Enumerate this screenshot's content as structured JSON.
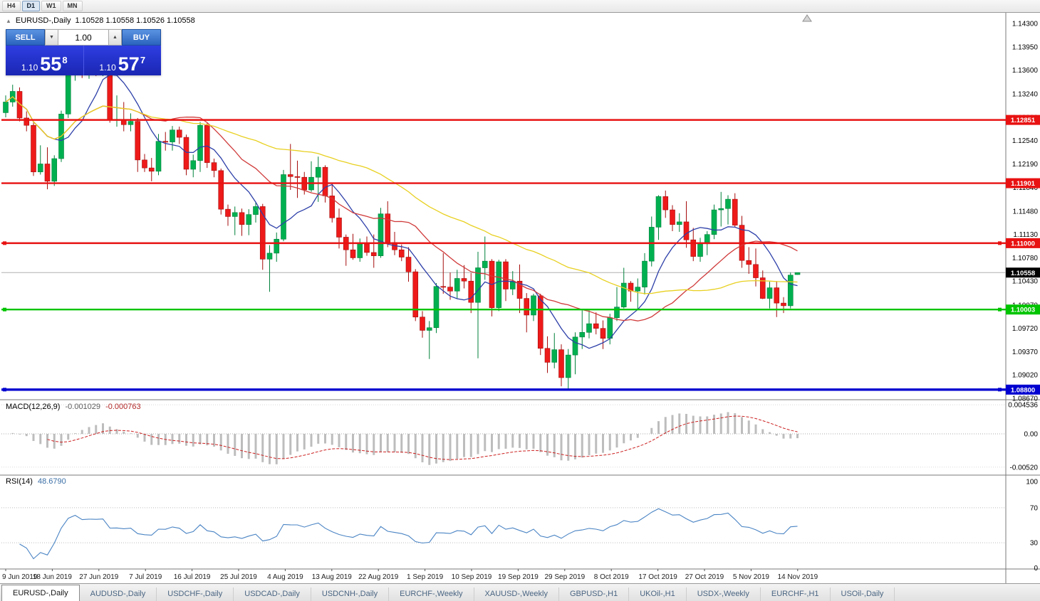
{
  "toolbar": {
    "timeframes": [
      "H4",
      "D1",
      "W1",
      "MN"
    ],
    "active": "D1"
  },
  "chart": {
    "collapse_icon": "▲",
    "title_symbol": "EURUSD-,Daily",
    "ohlc_values": "1.10528 1.10558 1.10526 1.10558"
  },
  "trade_panel": {
    "sell_label": "SELL",
    "buy_label": "BUY",
    "volume": "1.00",
    "spin_down_icon": "▼",
    "spin_up_icon": "▲",
    "sell_price": {
      "prefix": "1.10",
      "big": "55",
      "sup": "8"
    },
    "buy_price": {
      "prefix": "1.10",
      "big": "57",
      "sup": "7"
    }
  },
  "colors": {
    "bull": "#00b050",
    "bull_edge": "#00813b",
    "bear": "#ee1a1a",
    "bear_edge": "#a60d0d",
    "ma_fast": "#2d3fa8",
    "ma_medium": "#d03a3a",
    "ma_slow": "#e8d020",
    "level_red": "#e81212",
    "level_green": "#00c400",
    "level_blue": "#0000d0",
    "current_line": "#b0b0b0",
    "current_bg": "#000000",
    "macd_bar": "#bdbdbd",
    "macd_signal": "#cc2020",
    "rsi_line": "#4a84c4"
  },
  "levels": [
    {
      "price": 1.12851,
      "label": "1.12851",
      "color": "level_red",
      "width": 2.4,
      "handles": false
    },
    {
      "price": 1.11901,
      "label": "1.11901",
      "color": "level_red",
      "width": 2.4,
      "handles": false
    },
    {
      "price": 1.11,
      "label": "1.11000",
      "color": "level_red",
      "width": 2.4,
      "handles": true
    },
    {
      "price": 1.10003,
      "label": "1.10003",
      "color": "level_green",
      "width": 2.4,
      "handles": true
    },
    {
      "price": 1.088,
      "label": "1.08800",
      "color": "level_blue",
      "width": 3.4,
      "handles": true
    }
  ],
  "current_price": {
    "value": 1.10558,
    "label": "1.10558"
  },
  "chart_data": {
    "type": "candlestick",
    "symbol": "EURUSD",
    "timeframe": "Daily",
    "price_ticks": [
      "1.14300",
      "1.13950",
      "1.13600",
      "1.13240",
      "1.12890",
      "1.12540",
      "1.12190",
      "1.11840",
      "1.11480",
      "1.11130",
      "1.10780",
      "1.10430",
      "1.10070",
      "1.09720",
      "1.09370",
      "1.09020",
      "1.08670"
    ],
    "date_labels": [
      "9 Jun 2019",
      "18 Jun 2019",
      "27 Jun 2019",
      "7 Jul 2019",
      "16 Jul 2019",
      "25 Jul 2019",
      "4 Aug 2019",
      "13 Aug 2019",
      "22 Aug 2019",
      "1 Sep 2019",
      "10 Sep 2019",
      "19 Sep 2019",
      "29 Sep 2019",
      "8 Oct 2019",
      "17 Oct 2019",
      "27 Oct 2019",
      "5 Nov 2019",
      "14 Nov 2019"
    ],
    "candles": [
      [
        1.1296,
        1.1322,
        1.1289,
        1.1312
      ],
      [
        1.1312,
        1.1338,
        1.1305,
        1.1328
      ],
      [
        1.1328,
        1.1334,
        1.1283,
        1.1288
      ],
      [
        1.1288,
        1.1298,
        1.1268,
        1.1277
      ],
      [
        1.1277,
        1.1281,
        1.1201,
        1.1207
      ],
      [
        1.1207,
        1.1247,
        1.1203,
        1.1219
      ],
      [
        1.1219,
        1.1244,
        1.1181,
        1.1193
      ],
      [
        1.1193,
        1.1232,
        1.1186,
        1.1227
      ],
      [
        1.1227,
        1.1299,
        1.1222,
        1.1294
      ],
      [
        1.1294,
        1.1378,
        1.1288,
        1.1368
      ],
      [
        1.1368,
        1.1412,
        1.1344,
        1.1399
      ],
      [
        1.1399,
        1.1403,
        1.1348,
        1.1365
      ],
      [
        1.1365,
        1.1391,
        1.1347,
        1.1371
      ],
      [
        1.1371,
        1.139,
        1.1351,
        1.1369
      ],
      [
        1.1369,
        1.1394,
        1.1351,
        1.1373
      ],
      [
        1.1373,
        1.1376,
        1.1281,
        1.1285
      ],
      [
        1.1285,
        1.1322,
        1.1275,
        1.1286
      ],
      [
        1.1286,
        1.1312,
        1.1268,
        1.1278
      ],
      [
        1.1278,
        1.1295,
        1.1268,
        1.1283
      ],
      [
        1.1283,
        1.1288,
        1.1207,
        1.1225
      ],
      [
        1.1225,
        1.1234,
        1.1207,
        1.1213
      ],
      [
        1.1213,
        1.1228,
        1.1193,
        1.1208
      ],
      [
        1.1208,
        1.1264,
        1.1202,
        1.1253
      ],
      [
        1.1253,
        1.1267,
        1.1239,
        1.1252
      ],
      [
        1.1252,
        1.1276,
        1.1239,
        1.127
      ],
      [
        1.127,
        1.1275,
        1.1249,
        1.1259
      ],
      [
        1.1259,
        1.1263,
        1.1202,
        1.1211
      ],
      [
        1.1211,
        1.1233,
        1.1199,
        1.1224
      ],
      [
        1.1224,
        1.1282,
        1.1207,
        1.1277
      ],
      [
        1.1277,
        1.128,
        1.1213,
        1.1221
      ],
      [
        1.1221,
        1.1227,
        1.1199,
        1.1209
      ],
      [
        1.1209,
        1.1212,
        1.1143,
        1.1151
      ],
      [
        1.1151,
        1.1158,
        1.1126,
        1.114
      ],
      [
        1.114,
        1.1155,
        1.1112,
        1.1146
      ],
      [
        1.1146,
        1.1152,
        1.1111,
        1.1128
      ],
      [
        1.1128,
        1.1151,
        1.1112,
        1.1143
      ],
      [
        1.1143,
        1.1162,
        1.1131,
        1.1155
      ],
      [
        1.1155,
        1.1159,
        1.106,
        1.1076
      ],
      [
        1.1076,
        1.1097,
        1.1027,
        1.1085
      ],
      [
        1.1085,
        1.1116,
        1.1072,
        1.1106
      ],
      [
        1.1106,
        1.121,
        1.1103,
        1.1203
      ],
      [
        1.1203,
        1.1249,
        1.118,
        1.12
      ],
      [
        1.12,
        1.1224,
        1.1168,
        1.1199
      ],
      [
        1.1199,
        1.1207,
        1.1173,
        1.118
      ],
      [
        1.118,
        1.1223,
        1.1177,
        1.1199
      ],
      [
        1.1199,
        1.123,
        1.1162,
        1.1214
      ],
      [
        1.1214,
        1.1217,
        1.1161,
        1.1171
      ],
      [
        1.1171,
        1.119,
        1.1131,
        1.1138
      ],
      [
        1.1138,
        1.1152,
        1.1092,
        1.1109
      ],
      [
        1.1109,
        1.1113,
        1.1066,
        1.109
      ],
      [
        1.109,
        1.1114,
        1.1075,
        1.1078
      ],
      [
        1.1078,
        1.1107,
        1.1072,
        1.1099
      ],
      [
        1.1099,
        1.111,
        1.1081,
        1.1086
      ],
      [
        1.1086,
        1.1113,
        1.1063,
        1.1081
      ],
      [
        1.1081,
        1.1153,
        1.1078,
        1.1144
      ],
      [
        1.1144,
        1.1163,
        1.1094,
        1.1101
      ],
      [
        1.1101,
        1.1117,
        1.1082,
        1.109
      ],
      [
        1.109,
        1.1098,
        1.1073,
        1.1079
      ],
      [
        1.1079,
        1.1094,
        1.1042,
        1.1057
      ],
      [
        1.1057,
        1.1061,
        1.0983,
        1.0989
      ],
      [
        1.0989,
        1.0998,
        1.0958,
        1.0969
      ],
      [
        1.0969,
        1.0983,
        1.0926,
        1.0973
      ],
      [
        1.0973,
        1.104,
        1.0965,
        1.1035
      ],
      [
        1.1035,
        1.1085,
        1.1024,
        1.1034
      ],
      [
        1.1034,
        1.1056,
        1.1015,
        1.1028
      ],
      [
        1.1028,
        1.106,
        1.1016,
        1.1047
      ],
      [
        1.1047,
        1.1067,
        1.1032,
        1.1043
      ],
      [
        1.1043,
        1.1055,
        1.0995,
        1.1011
      ],
      [
        1.1011,
        1.1087,
        1.0927,
        1.1063
      ],
      [
        1.1063,
        1.111,
        1.1045,
        1.1073
      ],
      [
        1.1073,
        1.1076,
        1.099,
        1.1003
      ],
      [
        1.1003,
        1.1075,
        1.0998,
        1.1072
      ],
      [
        1.1072,
        1.1076,
        1.1013,
        1.1031
      ],
      [
        1.1031,
        1.1058,
        1.1022,
        1.1043
      ],
      [
        1.1043,
        1.1068,
        1.0995,
        1.1017
      ],
      [
        1.1017,
        1.1025,
        1.0966,
        1.0992
      ],
      [
        1.0992,
        1.1024,
        1.0983,
        1.1021
      ],
      [
        1.1021,
        1.1024,
        1.0932,
        1.0942
      ],
      [
        1.0942,
        1.096,
        1.0905,
        1.0921
      ],
      [
        1.0921,
        1.0965,
        1.0912,
        1.094
      ],
      [
        1.094,
        1.0948,
        1.0885,
        1.0898
      ],
      [
        1.0898,
        1.0941,
        1.0879,
        1.0932
      ],
      [
        1.0932,
        1.0966,
        1.0903,
        1.0959
      ],
      [
        1.0959,
        1.0999,
        1.0941,
        1.0966
      ],
      [
        1.0966,
        1.0999,
        1.0957,
        1.0979
      ],
      [
        1.0979,
        1.0996,
        1.0963,
        1.0972
      ],
      [
        1.0972,
        1.0984,
        1.0941,
        1.0957
      ],
      [
        1.0957,
        1.0994,
        1.0948,
        1.0988
      ],
      [
        1.0988,
        1.1034,
        1.0983,
        1.1004
      ],
      [
        1.1004,
        1.1063,
        1.1002,
        1.104
      ],
      [
        1.104,
        1.1043,
        1.1012,
        1.1028
      ],
      [
        1.1028,
        1.1047,
        1.1001,
        1.1034
      ],
      [
        1.1034,
        1.1085,
        1.1023,
        1.1073
      ],
      [
        1.1073,
        1.114,
        1.1065,
        1.1124
      ],
      [
        1.1124,
        1.1172,
        1.1105,
        1.117
      ],
      [
        1.117,
        1.1179,
        1.1138,
        1.115
      ],
      [
        1.115,
        1.1157,
        1.1118,
        1.1128
      ],
      [
        1.1128,
        1.1145,
        1.1117,
        1.1132
      ],
      [
        1.1132,
        1.1163,
        1.1093,
        1.1105
      ],
      [
        1.1105,
        1.1123,
        1.1073,
        1.108
      ],
      [
        1.108,
        1.1108,
        1.1072,
        1.1099
      ],
      [
        1.1099,
        1.1118,
        1.1082,
        1.1113
      ],
      [
        1.1113,
        1.1158,
        1.1106,
        1.115
      ],
      [
        1.115,
        1.1177,
        1.1125,
        1.1152
      ],
      [
        1.1152,
        1.1172,
        1.1128,
        1.1166
      ],
      [
        1.1166,
        1.1175,
        1.1124,
        1.1127
      ],
      [
        1.1127,
        1.1141,
        1.1063,
        1.1074
      ],
      [
        1.1074,
        1.1094,
        1.1054,
        1.1068
      ],
      [
        1.1068,
        1.1092,
        1.1035,
        1.1048
      ],
      [
        1.1048,
        1.1059,
        1.1016,
        1.1017
      ],
      [
        1.1017,
        1.1042,
        1.1002,
        1.1033
      ],
      [
        1.1033,
        1.1043,
        1.0989,
        1.101
      ],
      [
        1.101,
        1.1019,
        1.0995,
        1.1006
      ],
      [
        1.1006,
        1.1056,
        1.1002,
        1.1052
      ],
      [
        1.10528,
        1.10558,
        1.10526,
        1.10558
      ]
    ],
    "moving_averages": [
      {
        "name": "ma-fast",
        "period": 8,
        "color": "ma_fast"
      },
      {
        "name": "ma-medium",
        "period": 20,
        "color": "ma_medium"
      },
      {
        "name": "ma-slow",
        "period": 45,
        "color": "ma_slow"
      }
    ],
    "macd": {
      "label": "MACD(12,26,9)",
      "value_main": "-0.001029",
      "value_signal": "-0.000763",
      "fast": 12,
      "slow": 26,
      "signal": 9,
      "axis_ticks": [
        "0.004536",
        "0.00",
        "-0.00520"
      ]
    },
    "rsi": {
      "label": "RSI(14)",
      "value_text": "48.6790",
      "period": 14,
      "levels": [
        70,
        30
      ],
      "axis_ticks": [
        "100",
        "70",
        "30",
        "0"
      ]
    }
  },
  "tabs": {
    "active_index": 0,
    "items": [
      "EURUSD-,Daily",
      "AUDUSD-,Daily",
      "USDCHF-,Daily",
      "USDCAD-,Daily",
      "USDCNH-,Daily",
      "EURCHF-,Weekly",
      "XAUUSD-,Weekly",
      "GBPUSD-,H1",
      "UKOil-,H1",
      "USDX-,Weekly",
      "EURCHF-,H1",
      "USOil-,Daily"
    ]
  }
}
